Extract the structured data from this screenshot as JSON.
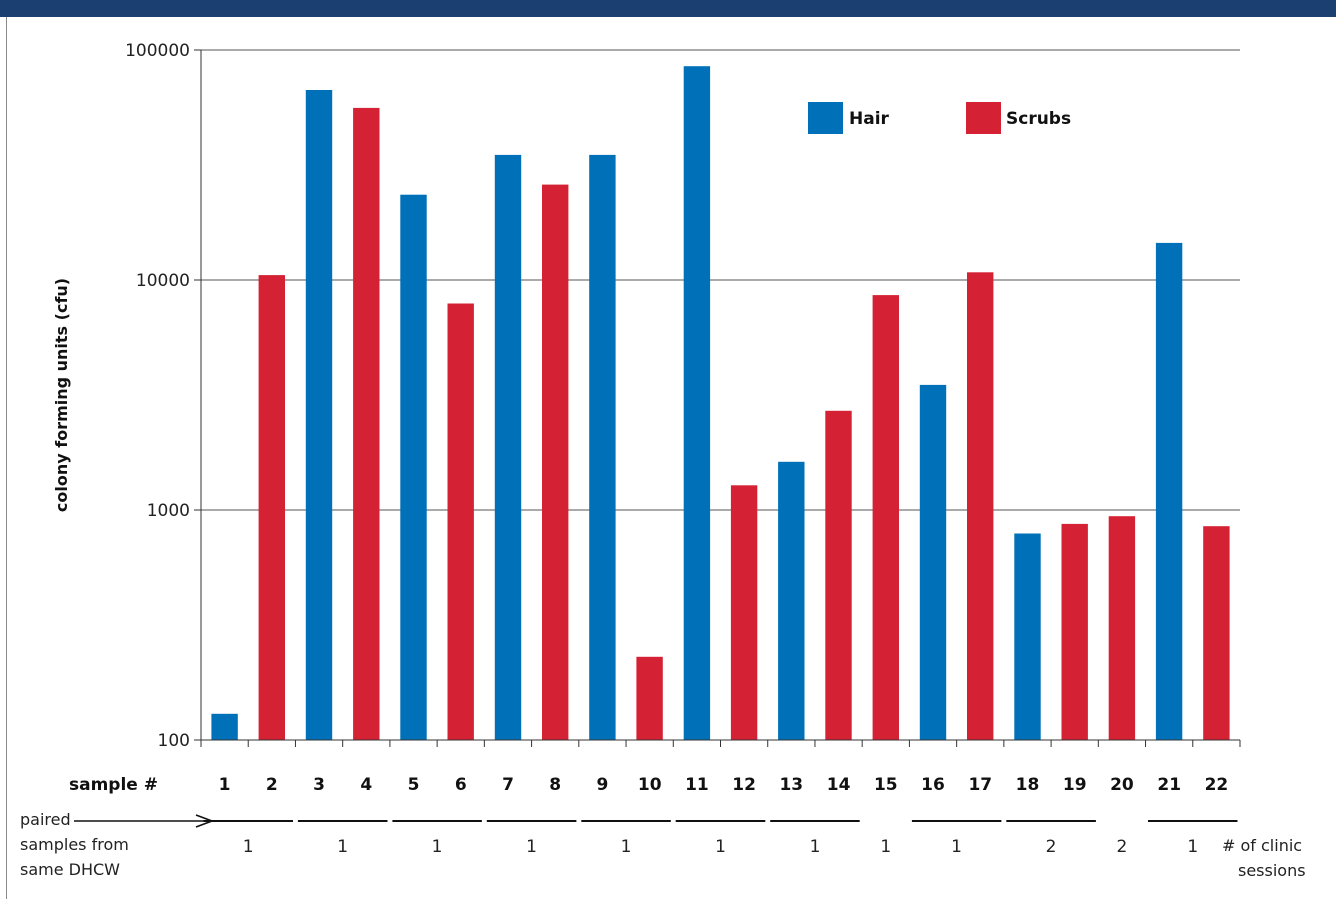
{
  "chart_data": {
    "type": "bar",
    "ylabel": "colony forming units (cfu)",
    "xlabel": "sample #",
    "yscale": "log",
    "ylim": [
      100,
      100000
    ],
    "yticks": [
      "100",
      "1000",
      "10000",
      "100000"
    ],
    "grid": true,
    "legend_position": "top-right",
    "categories": [
      "1",
      "2",
      "3",
      "4",
      "5",
      "6",
      "7",
      "8",
      "9",
      "10",
      "11",
      "12",
      "13",
      "14",
      "15",
      "16",
      "17",
      "18",
      "19",
      "20",
      "21",
      "22"
    ],
    "values": [
      130,
      10500,
      67000,
      56000,
      23500,
      7900,
      35000,
      26000,
      35000,
      230,
      85000,
      1280,
      1620,
      2700,
      8600,
      3500,
      10800,
      790,
      870,
      940,
      14500,
      850
    ],
    "bar_series": [
      "Hair",
      "Scrubs",
      "Hair",
      "Scrubs",
      "Hair",
      "Scrubs",
      "Hair",
      "Scrubs",
      "Hair",
      "Scrubs",
      "Hair",
      "Scrubs",
      "Hair",
      "Scrubs",
      "Scrubs",
      "Hair",
      "Scrubs",
      "Hair",
      "Scrubs",
      "Scrubs",
      "Hair",
      "Scrubs"
    ],
    "series": [
      {
        "name": "Hair",
        "color": "#0070b8"
      },
      {
        "name": "Scrubs",
        "color": "#d42234"
      }
    ],
    "pairs": [
      {
        "from": "1",
        "to": "2",
        "sessions": "1"
      },
      {
        "from": "3",
        "to": "4",
        "sessions": "1"
      },
      {
        "from": "5",
        "to": "6",
        "sessions": "1"
      },
      {
        "from": "7",
        "to": "8",
        "sessions": "1"
      },
      {
        "from": "9",
        "to": "10",
        "sessions": "1"
      },
      {
        "from": "11",
        "to": "12",
        "sessions": "1"
      },
      {
        "from": "13",
        "to": "14",
        "sessions": "1"
      },
      {
        "from": "15",
        "to": "15",
        "sessions": "1",
        "line": false
      },
      {
        "from": "16",
        "to": "17",
        "sessions": "1"
      },
      {
        "from": "18",
        "to": "19",
        "sessions": "2"
      },
      {
        "from": "20",
        "to": "20",
        "sessions": "2",
        "line": false
      },
      {
        "from": "21",
        "to": "22",
        "sessions": "1"
      }
    ],
    "annotations": {
      "paired_label": [
        "paired",
        "samples from",
        "same DHCW"
      ],
      "sessions_label": [
        "# of clinic",
        "sessions"
      ]
    }
  },
  "colors": {
    "header_band": "#1c3f72",
    "grid": "#555555"
  }
}
